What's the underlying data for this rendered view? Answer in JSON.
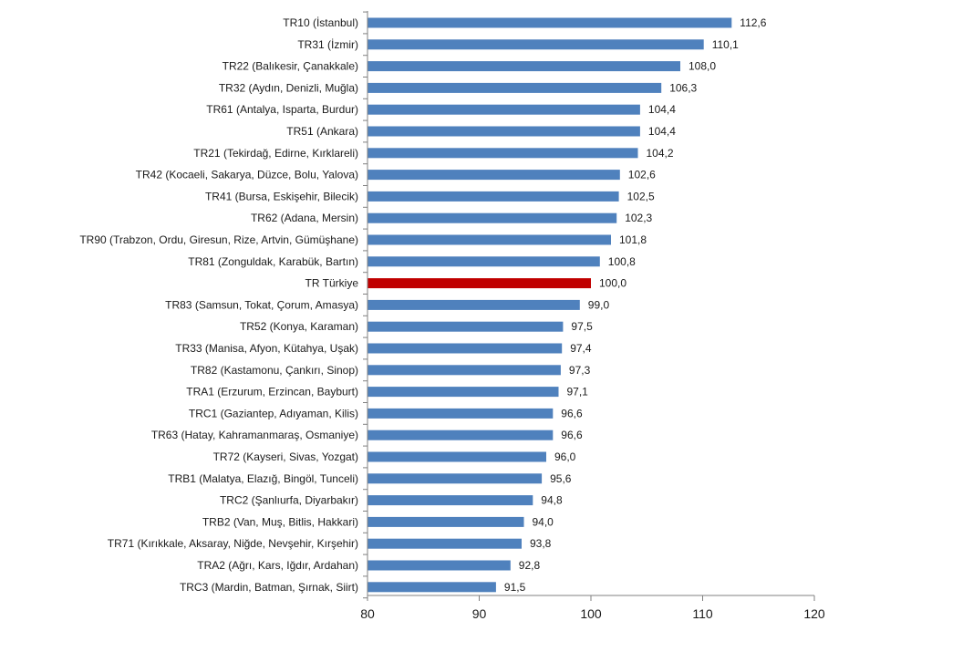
{
  "chart_data": {
    "type": "bar",
    "orientation": "horizontal",
    "categories": [
      "TR10 (İstanbul)",
      "TR31 (İzmir)",
      "TR22 (Balıkesir, Çanakkale)",
      "TR32 (Aydın, Denizli, Muğla)",
      "TR61 (Antalya, Isparta, Burdur)",
      "TR51 (Ankara)",
      "TR21 (Tekirdağ, Edirne, Kırklareli)",
      "TR42 (Kocaeli, Sakarya, Düzce, Bolu, Yalova)",
      "TR41 (Bursa, Eskişehir, Bilecik)",
      "TR62 (Adana, Mersin)",
      "TR90 (Trabzon, Ordu, Giresun, Rize, Artvin, Gümüşhane)",
      "TR81 (Zonguldak, Karabük, Bartın)",
      "TR Türkiye",
      "TR83 (Samsun, Tokat, Çorum, Amasya)",
      "TR52 (Konya, Karaman)",
      "TR33 (Manisa, Afyon, Kütahya, Uşak)",
      "TR82 (Kastamonu, Çankırı, Sinop)",
      "TRA1 (Erzurum, Erzincan, Bayburt)",
      "TRC1 (Gaziantep, Adıyaman, Kilis)",
      "TR63 (Hatay, Kahramanmaraş, Osmaniye)",
      "TR72 (Kayseri, Sivas, Yozgat)",
      "TRB1 (Malatya, Elazığ, Bingöl, Tunceli)",
      "TRC2 (Şanlıurfa, Diyarbakır)",
      "TRB2 (Van, Muş, Bitlis, Hakkari)",
      "TR71 (Kırıkkale, Aksaray, Niğde, Nevşehir, Kırşehir)",
      "TRA2 (Ağrı, Kars, Iğdır, Ardahan)",
      "TRC3 (Mardin, Batman, Şırnak, Siirt)"
    ],
    "values": [
      112.6,
      110.1,
      108.0,
      106.3,
      104.4,
      104.4,
      104.2,
      102.6,
      102.5,
      102.3,
      101.8,
      100.8,
      100.0,
      99.0,
      97.5,
      97.4,
      97.3,
      97.1,
      96.6,
      96.6,
      96.0,
      95.6,
      94.8,
      94.0,
      93.8,
      92.8,
      91.5
    ],
    "value_labels": [
      "112,6",
      "110,1",
      "108,0",
      "106,3",
      "104,4",
      "104,4",
      "104,2",
      "102,6",
      "102,5",
      "102,3",
      "101,8",
      "100,8",
      "100,0",
      "99,0",
      "97,5",
      "97,4",
      "97,3",
      "97,1",
      "96,6",
      "96,6",
      "96,0",
      "95,6",
      "94,8",
      "94,0",
      "93,8",
      "92,8",
      "91,5"
    ],
    "highlight_category": "TR Türkiye",
    "xlim": [
      80,
      120
    ],
    "xticks": [
      80,
      90,
      100,
      110,
      120
    ],
    "title": "",
    "xlabel": "",
    "ylabel": "",
    "grid": false,
    "legend": "none",
    "colors": {
      "bar": "#4f81bd",
      "highlight": "#c00000",
      "axis": "#808080"
    }
  }
}
